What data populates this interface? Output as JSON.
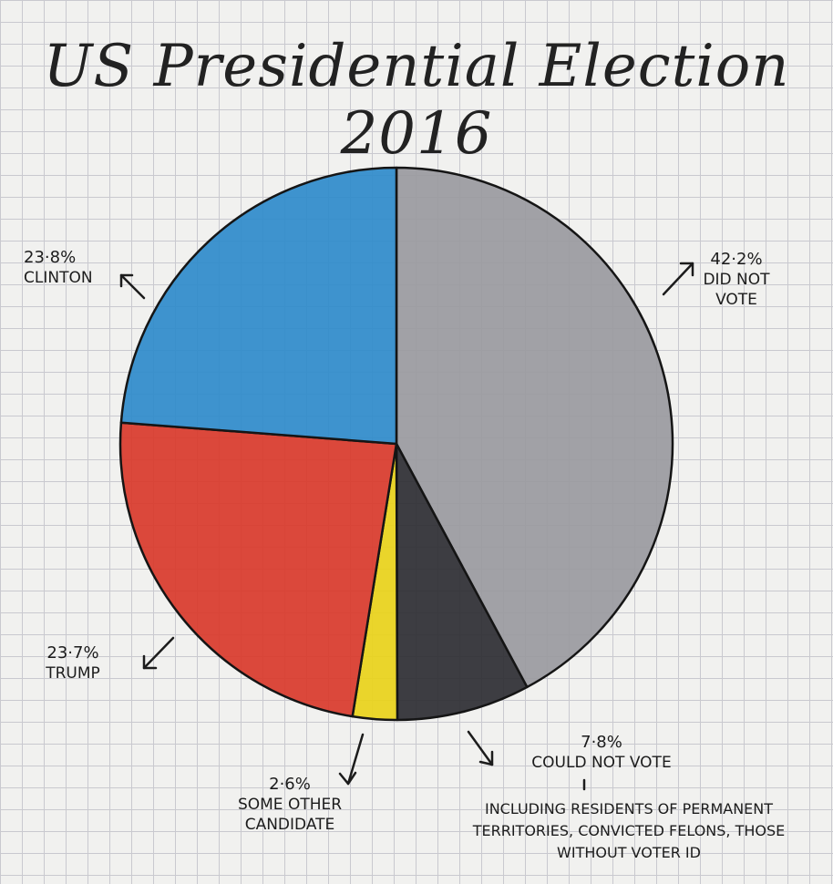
{
  "chart_data": {
    "type": "pie",
    "title": "US Presidential Election 2016",
    "slices": [
      {
        "label": "DID NOT VOTE",
        "value": 42.2,
        "display": "42·2%",
        "color": "#9a9aa0"
      },
      {
        "label": "COULD NOT VOTE",
        "value": 7.8,
        "display": "7·8%",
        "color": "#2e2e33"
      },
      {
        "label": "SOME OTHER CANDIDATE",
        "value": 2.6,
        "display": "2·6%",
        "color": "#e9d21a"
      },
      {
        "label": "TRUMP",
        "value": 23.7,
        "display": "23·7%",
        "color": "#d93a2b"
      },
      {
        "label": "CLINTON",
        "value": 23.8,
        "display": "23·8%",
        "color": "#2f8bcb"
      }
    ],
    "annotations": [
      {
        "text": "INCLUDING RESIDENTS OF PERMANENT TERRITORIES, CONVICTED FELONS, THOSE WITHOUT VOTER ID"
      }
    ]
  }
}
